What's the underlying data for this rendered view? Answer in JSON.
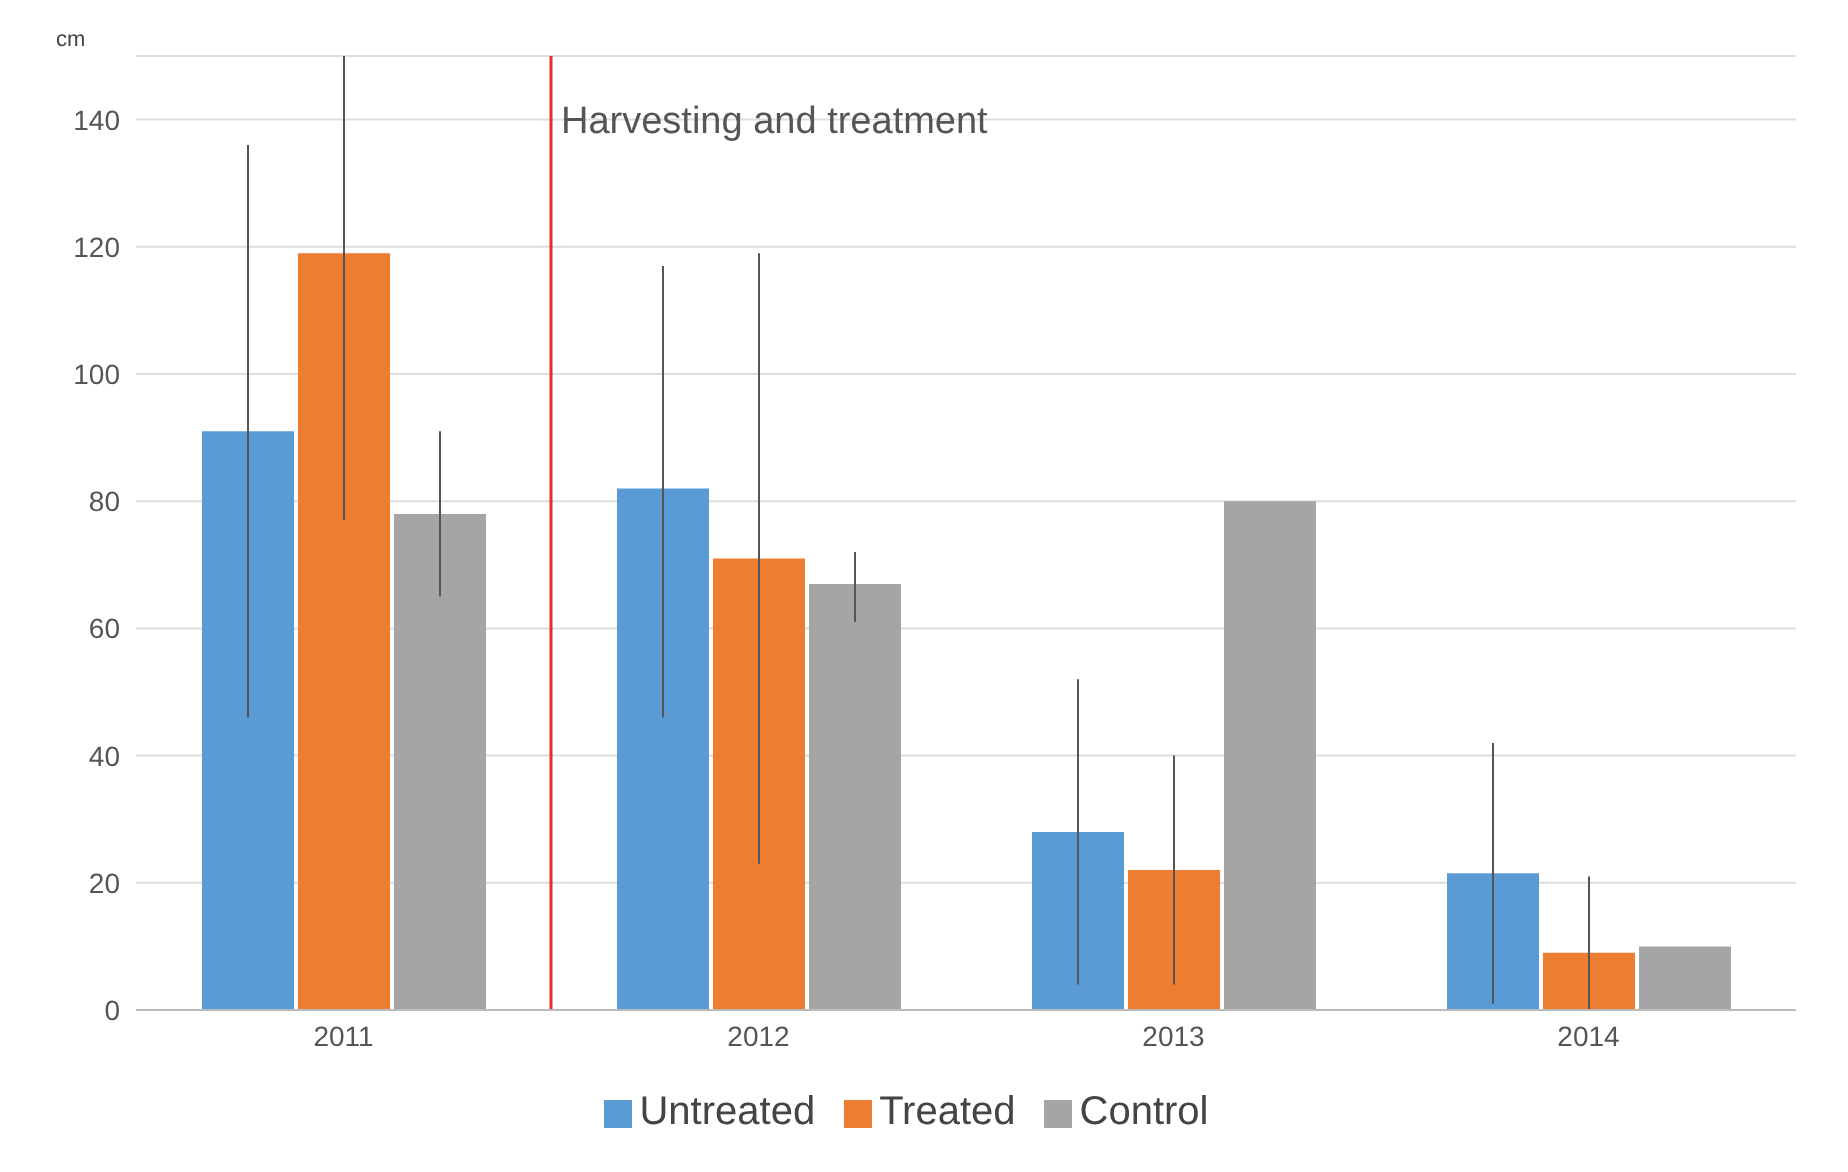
{
  "chart_data": {
    "type": "bar",
    "ylabel": "cm",
    "x": [
      2011,
      2012,
      2013,
      2014
    ],
    "xlim": [
      2010.5,
      2014.5
    ],
    "xticks": [
      2011,
      2012,
      2013,
      2014
    ],
    "series": [
      {
        "name": "Untreated",
        "color": "#5b9bd5",
        "values": [
          91,
          82,
          28,
          21.5
        ],
        "errors": [
          [
            46,
            136
          ],
          [
            46,
            117
          ],
          [
            4,
            52
          ],
          [
            1,
            42
          ]
        ]
      },
      {
        "name": "Treated",
        "color": "#ed7d31",
        "values": [
          119,
          71,
          22,
          9
        ],
        "errors": [
          [
            77,
            150
          ],
          [
            23,
            119
          ],
          [
            4,
            40
          ],
          [
            0,
            21
          ]
        ]
      },
      {
        "name": "Control",
        "color": "#a5a5a5",
        "values": [
          78,
          67,
          80,
          10
        ],
        "errors": [
          [
            65,
            91
          ],
          [
            61,
            72
          ],
          null,
          null
        ]
      }
    ],
    "ylim": [
      0,
      150
    ],
    "yticks": [
      0,
      20,
      40,
      60,
      80,
      100,
      120,
      140
    ],
    "grid": "y",
    "legend": "bottom",
    "ref_lines": [
      {
        "axis": "x",
        "value": 2011.5,
        "label": "Harvesting and treatment",
        "color": "#e03030"
      }
    ]
  }
}
